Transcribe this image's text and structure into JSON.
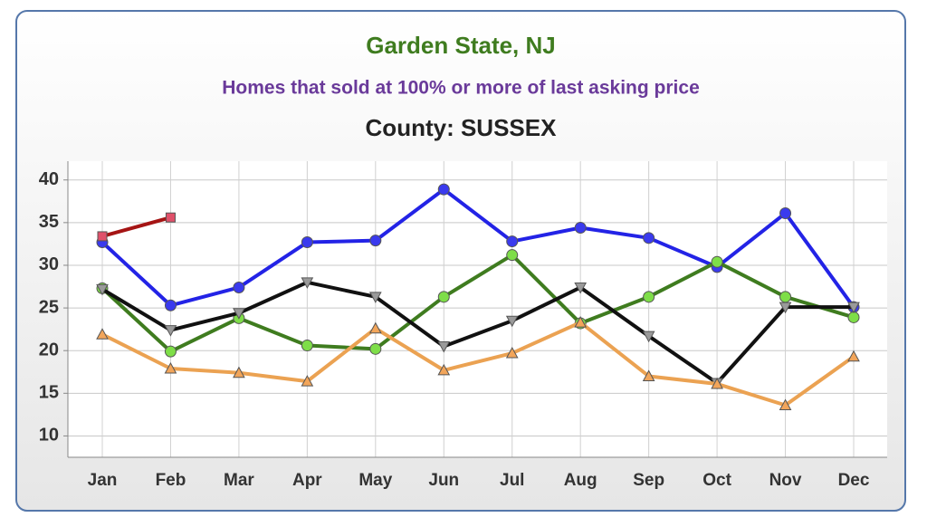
{
  "chart_data": {
    "type": "line",
    "title": "Garden State, NJ",
    "subtitle": "Homes that sold at 100% or more of last asking price",
    "county": "County: SUSSEX",
    "categories": [
      "Jan",
      "Feb",
      "Mar",
      "Apr",
      "May",
      "Jun",
      "Jul",
      "Aug",
      "Sep",
      "Oct",
      "Nov",
      "Dec"
    ],
    "ylim": [
      7.5,
      42.2
    ],
    "yticks": [
      10,
      15,
      20,
      25,
      30,
      35,
      40
    ],
    "grid": true,
    "series": [
      {
        "color": "#2323e6",
        "marker": "circle",
        "marker_color": "#3a3aee",
        "values": [
          32.7,
          25.3,
          27.4,
          32.7,
          32.9,
          38.9,
          32.8,
          34.4,
          33.2,
          29.8,
          36.1,
          25.1
        ]
      },
      {
        "color": "#a51414",
        "marker": "square",
        "marker_color": "#e0506a",
        "values": [
          33.4,
          35.6,
          null,
          null,
          null,
          null,
          null,
          null,
          null,
          null,
          null,
          null
        ]
      },
      {
        "color": "#3f7c1f",
        "marker": "circle",
        "marker_color": "#7ede48",
        "values": [
          27.3,
          19.9,
          23.8,
          20.6,
          20.2,
          26.3,
          31.2,
          23.2,
          26.3,
          30.4,
          26.3,
          23.9
        ]
      },
      {
        "color": "#111111",
        "marker": "triangle-down",
        "marker_color": "#9a9a9a",
        "values": [
          27.2,
          22.4,
          24.4,
          28.0,
          26.3,
          20.5,
          23.5,
          27.4,
          21.7,
          16.2,
          25.1,
          25.1
        ]
      },
      {
        "color": "#eba252",
        "marker": "triangle-up",
        "marker_color": "#f2a55a",
        "values": [
          21.9,
          17.9,
          17.4,
          16.4,
          22.6,
          17.7,
          19.7,
          23.3,
          17.0,
          16.1,
          13.6,
          19.3
        ]
      }
    ]
  }
}
